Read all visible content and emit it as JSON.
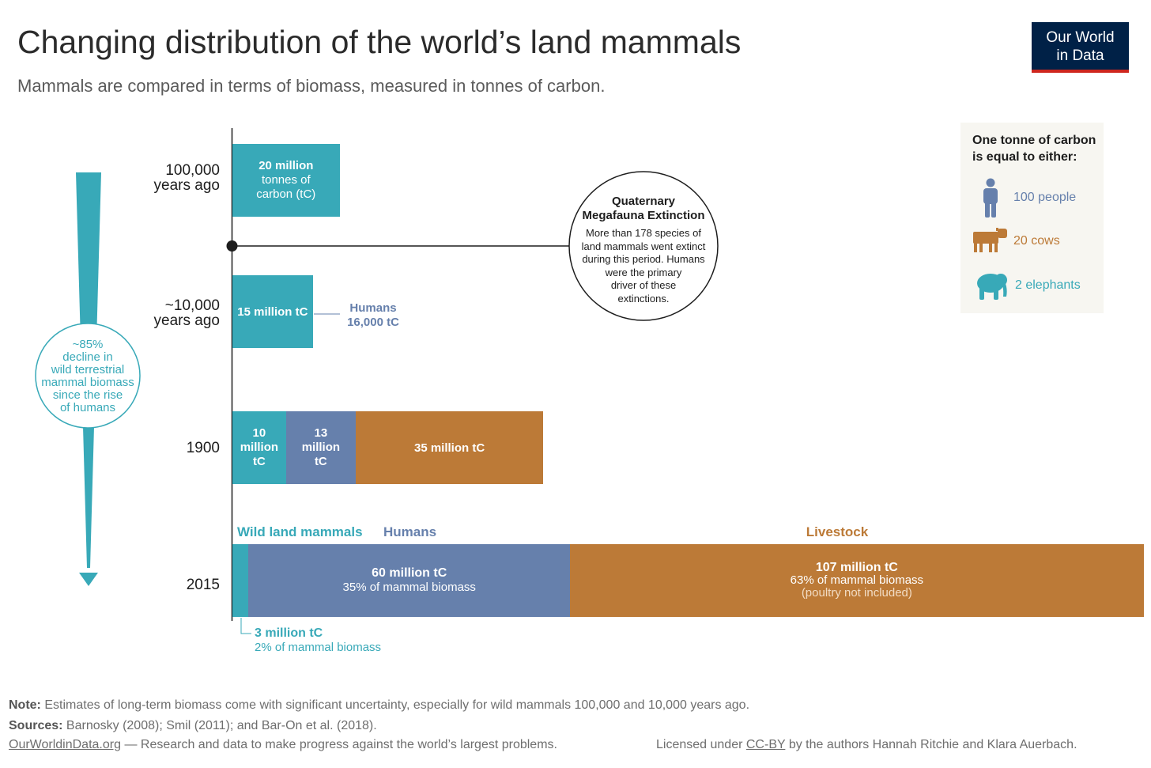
{
  "title": "Changing distribution of the world’s land mammals",
  "subtitle": "Mammals are compared in terms of biomass, measured in tonnes of carbon.",
  "logo": {
    "line1": "Our World",
    "line2": "in Data"
  },
  "colors": {
    "wild": "#38a9b8",
    "humans": "#6680ac",
    "livestock": "#bc7a37",
    "logo_bg": "#002147",
    "logo_accent": "#ce261e"
  },
  "chart_data": {
    "type": "bar",
    "orientation": "horizontal",
    "stacked": true,
    "categories": [
      "100,000 years ago",
      "~10,000 years ago",
      "1900",
      "2015"
    ],
    "series": [
      {
        "name": "Wild land mammals",
        "values": [
          20,
          15,
          10,
          3
        ]
      },
      {
        "name": "Humans",
        "values": [
          null,
          0.016,
          13,
          60
        ]
      },
      {
        "name": "Livestock",
        "values": [
          null,
          null,
          35,
          107
        ]
      }
    ],
    "unit": "million tC",
    "row_labels": [
      {
        "line1": "100,000",
        "line2": "years ago"
      },
      {
        "line1": "~10,000",
        "line2": "years ago"
      },
      {
        "line1": "1900",
        "line2": ""
      },
      {
        "line1": "2015",
        "line2": ""
      }
    ],
    "bar_labels": {
      "r0_wild": [
        "20 million",
        "tonnes of",
        "carbon (tC)"
      ],
      "r1_wild": "15 million tC",
      "r1_humans": {
        "name": "Humans",
        "value": "16,000 tC"
      },
      "r2_wild": [
        "10",
        "million",
        "tC"
      ],
      "r2_humans": [
        "13",
        "million",
        "tC"
      ],
      "r2_livestock": "35 million tC",
      "r3_wild": {
        "value": "3 million tC",
        "share": "2% of mammal biomass"
      },
      "r3_humans": {
        "value": "60 million tC",
        "share": "35% of mammal biomass"
      },
      "r3_livestock": {
        "value": "107 million tC",
        "share": "63% of mammal biomass",
        "note": "(poultry not included)"
      }
    },
    "series_labels_2015": {
      "wild": "Wild land mammals",
      "humans": "Humans",
      "livestock": "Livestock"
    },
    "annotation": {
      "title1": "Quaternary",
      "title2": "Megafauna Extinction",
      "lines": [
        "More than 178 species of",
        "land mammals went extinct",
        "during this period. Humans",
        "were the primary",
        "driver of these",
        "extinctions."
      ]
    },
    "decline": {
      "lines": [
        "~85%",
        "decline in",
        "wild terrestrial",
        "mammal biomass",
        "since the rise",
        "of humans"
      ]
    }
  },
  "legend": {
    "heading1": "One tonne of carbon",
    "heading2": "is equal to either:",
    "items": [
      {
        "icon": "person-icon",
        "label": "100 people"
      },
      {
        "icon": "cow-icon",
        "label": "20 cows"
      },
      {
        "icon": "elephant-icon",
        "label": "2 elephants"
      }
    ]
  },
  "footer": {
    "note_label": "Note:",
    "note": "Estimates of long-term biomass come with significant uncertainty, especially for wild mammals 100,000 and 10,000 years ago.",
    "sources_label": "Sources:",
    "sources": "Barnosky (2008); Smil (2011); and Bar-On et al. (2018).",
    "site": "OurWorldinData.org",
    "tagline": "— Research and data to make progress against the world’s largest problems.",
    "license_pre": "Licensed under",
    "license_link": "CC-BY",
    "license_post": "by the authors Hannah Ritchie and Klara Auerbach."
  }
}
